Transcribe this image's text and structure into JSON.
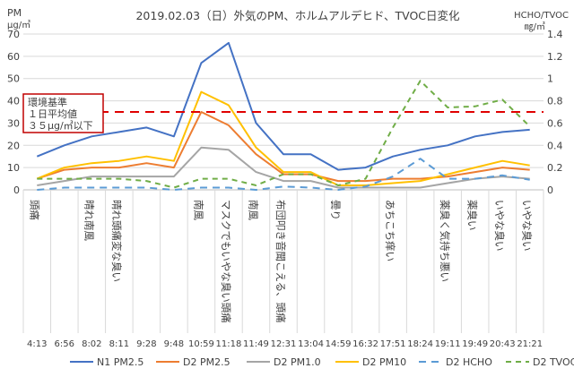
{
  "chart_data": {
    "type": "line",
    "title": "2019.02.03（日）外気のPM、ホルムアルデヒド、TVOC日変化",
    "y_left_label": [
      "PM",
      "μg/㎥"
    ],
    "y_right_label": [
      "HCHO/TVOC",
      "㎎/㎥"
    ],
    "ylim_left": [
      0,
      70
    ],
    "yticks_left": [
      "0",
      "10",
      "20",
      "30",
      "40",
      "50",
      "60",
      "70"
    ],
    "ylim_right": [
      0,
      1.4
    ],
    "yticks_right": [
      "0",
      "0.2",
      "0.4",
      "0.6",
      "0.8",
      "1",
      "1.2",
      "1.4"
    ],
    "categories": [
      "4:13",
      "6:56",
      "8:02",
      "8:11",
      "9:28",
      "9:48",
      "10:59",
      "11:18",
      "11:49",
      "12:31",
      "13:04",
      "14:59",
      "16:32",
      "17:51",
      "18:24",
      "19:11",
      "19:49",
      "20:43",
      "21:21"
    ],
    "notes": [
      "頭痛",
      "",
      "晴れ南風",
      "晴れ頭痛変な臭い",
      "",
      "",
      "南風",
      "マスクでもいやな臭い頭痛",
      "南風",
      "布団叩き音聞こえる、頭痛",
      "",
      "曇り",
      "",
      "あちこち痒い",
      "",
      "薬臭く気持ち悪い",
      "薬臭い",
      "いやな臭い",
      "いやな臭い"
    ],
    "series": [
      {
        "name": "N1 PM2.5",
        "axis": "left",
        "color": "#4472C4",
        "dash": "",
        "values": [
          15,
          20,
          24,
          26,
          28,
          24,
          57,
          66,
          30,
          16,
          16,
          9,
          10,
          15,
          18,
          20,
          24,
          26,
          27
        ]
      },
      {
        "name": "D2 PM2.5",
        "axis": "left",
        "color": "#ED7D31",
        "dash": "",
        "values": [
          5,
          9,
          10,
          10,
          12,
          10,
          35,
          29,
          16,
          7,
          7,
          4,
          4,
          5,
          5,
          6,
          8,
          10,
          9
        ]
      },
      {
        "name": "D2 PM1.0",
        "axis": "left",
        "color": "#A5A5A5",
        "dash": "",
        "values": [
          2,
          4,
          6,
          6,
          6,
          6,
          19,
          18,
          8,
          4,
          4,
          1,
          1,
          1,
          1,
          3,
          5,
          6,
          5
        ]
      },
      {
        "name": "D2 PM10",
        "axis": "left",
        "color": "#FFC000",
        "dash": "",
        "values": [
          5,
          10,
          12,
          13,
          15,
          13,
          44,
          38,
          19,
          8,
          8,
          2,
          2,
          3,
          4,
          7,
          10,
          13,
          11
        ]
      },
      {
        "name": "D2 HCHO",
        "axis": "right",
        "color": "#5B9BD5",
        "dash": "8,6",
        "values": [
          0,
          0.02,
          0.02,
          0.02,
          0.02,
          0,
          0.02,
          0.02,
          0,
          0.03,
          0.02,
          0,
          0.03,
          0.12,
          0.28,
          0.1,
          0.1,
          0.13,
          0.09
        ]
      },
      {
        "name": "D2 TVOC",
        "axis": "right",
        "color": "#70AD47",
        "dash": "6,5",
        "values": [
          0.1,
          0.1,
          0.1,
          0.1,
          0.08,
          0.02,
          0.1,
          0.1,
          0.04,
          0.14,
          0.14,
          0.04,
          0.1,
          0.56,
          0.98,
          0.74,
          0.75,
          0.81,
          0.57
        ]
      }
    ],
    "reference_line": {
      "value": 35,
      "color": "#E00000",
      "dash": "10,7"
    },
    "reference_box_lines": [
      "環境基準",
      "１日平均値",
      "３５μg/㎥以下"
    ],
    "legend_position": "bottom",
    "grid": true
  }
}
